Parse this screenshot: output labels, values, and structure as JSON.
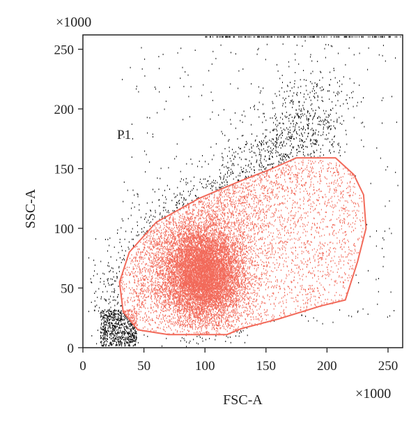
{
  "chart_data": {
    "type": "scatter",
    "title": "",
    "xlabel": "FSC-A",
    "ylabel": "SSC-A",
    "x_multiplier_label": "×1000",
    "y_multiplier_label": "×1000",
    "xlim": [
      0,
      262
    ],
    "ylim": [
      0,
      262
    ],
    "xticks": [
      0,
      50,
      100,
      150,
      200,
      250
    ],
    "yticks": [
      0,
      50,
      100,
      150,
      200,
      250
    ],
    "grid": false,
    "gate": {
      "name": "P1",
      "color": "#f26a5a",
      "polygon": [
        [
          175,
          159
        ],
        [
          207,
          159
        ],
        [
          222,
          145
        ],
        [
          230,
          128
        ],
        [
          232,
          100
        ],
        [
          225,
          72
        ],
        [
          215,
          40
        ],
        [
          195,
          35
        ],
        [
          160,
          24
        ],
        [
          130,
          16
        ],
        [
          118,
          11
        ],
        [
          70,
          11
        ],
        [
          45,
          15
        ],
        [
          33,
          30
        ],
        [
          30,
          55
        ],
        [
          38,
          80
        ],
        [
          60,
          105
        ],
        [
          95,
          125
        ],
        [
          130,
          140
        ],
        [
          155,
          150
        ],
        [
          175,
          159
        ]
      ]
    },
    "population_colors": {
      "inside_gate": "#f26a5a",
      "outside_gate": "#111111"
    }
  }
}
